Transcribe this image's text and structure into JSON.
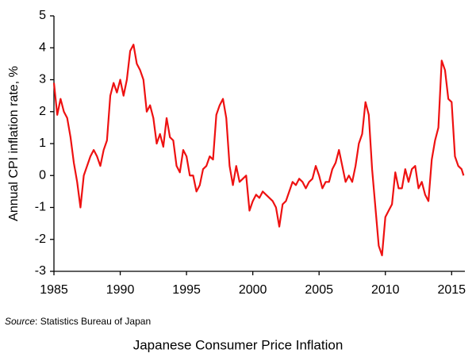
{
  "chart_data": {
    "type": "line",
    "title": "Japanese Consumer Price Inflation",
    "y_label": "Annual CPI inflation rate, %",
    "source_label": "Source",
    "source_text": ": Statistics Bureau of Japan",
    "x": [
      1985,
      1985.25,
      1985.5,
      1985.75,
      1986,
      1986.25,
      1986.5,
      1986.75,
      1987,
      1987.25,
      1987.5,
      1987.75,
      1988,
      1988.25,
      1988.5,
      1988.75,
      1989,
      1989.25,
      1989.5,
      1989.75,
      1990,
      1990.25,
      1990.5,
      1990.75,
      1991,
      1991.25,
      1991.5,
      1991.75,
      1992,
      1992.25,
      1992.5,
      1992.75,
      1993,
      1993.25,
      1993.5,
      1993.75,
      1994,
      1994.25,
      1994.5,
      1994.75,
      1995,
      1995.25,
      1995.5,
      1995.75,
      1996,
      1996.25,
      1996.5,
      1996.75,
      1997,
      1997.25,
      1997.5,
      1997.75,
      1998,
      1998.25,
      1998.5,
      1998.75,
      1999,
      1999.25,
      1999.5,
      1999.75,
      2000,
      2000.25,
      2000.5,
      2000.75,
      2001,
      2001.25,
      2001.5,
      2001.75,
      2002,
      2002.25,
      2002.5,
      2002.75,
      2003,
      2003.25,
      2003.5,
      2003.75,
      2004,
      2004.25,
      2004.5,
      2004.75,
      2005,
      2005.25,
      2005.5,
      2005.75,
      2006,
      2006.25,
      2006.5,
      2006.75,
      2007,
      2007.25,
      2007.5,
      2007.75,
      2008,
      2008.25,
      2008.5,
      2008.75,
      2009,
      2009.25,
      2009.5,
      2009.75,
      2010,
      2010.25,
      2010.5,
      2010.75,
      2011,
      2011.25,
      2011.5,
      2011.75,
      2012,
      2012.25,
      2012.5,
      2012.75,
      2013,
      2013.25,
      2013.5,
      2013.75,
      2014,
      2014.25,
      2014.5,
      2014.75,
      2015,
      2015.25,
      2015.5,
      2015.75,
      2015.9
    ],
    "series": [
      {
        "name": "CPI inflation",
        "color": "#ee1111",
        "values": [
          2.9,
          1.9,
          2.4,
          2.0,
          1.8,
          1.2,
          0.4,
          -0.2,
          -1.0,
          0.0,
          0.3,
          0.6,
          0.8,
          0.6,
          0.3,
          0.8,
          1.1,
          2.5,
          2.9,
          2.6,
          3.0,
          2.5,
          3.0,
          3.9,
          4.1,
          3.5,
          3.3,
          3.0,
          2.0,
          2.2,
          1.8,
          1.0,
          1.3,
          0.9,
          1.8,
          1.2,
          1.1,
          0.3,
          0.1,
          0.8,
          0.6,
          0.0,
          0.0,
          -0.5,
          -0.3,
          0.2,
          0.3,
          0.6,
          0.5,
          1.9,
          2.2,
          2.4,
          1.8,
          0.3,
          -0.3,
          0.3,
          -0.2,
          -0.1,
          0.0,
          -1.1,
          -0.8,
          -0.6,
          -0.7,
          -0.5,
          -0.6,
          -0.7,
          -0.8,
          -1.0,
          -1.6,
          -0.9,
          -0.8,
          -0.5,
          -0.2,
          -0.3,
          -0.1,
          -0.2,
          -0.4,
          -0.2,
          -0.1,
          0.3,
          0.0,
          -0.4,
          -0.2,
          -0.2,
          0.2,
          0.4,
          0.8,
          0.3,
          -0.2,
          0.0,
          -0.2,
          0.3,
          1.0,
          1.3,
          2.3,
          1.9,
          0.2,
          -1.0,
          -2.2,
          -2.5,
          -1.3,
          -1.1,
          -0.9,
          0.1,
          -0.4,
          -0.4,
          0.2,
          -0.2,
          0.2,
          0.3,
          -0.4,
          -0.2,
          -0.6,
          -0.8,
          0.5,
          1.1,
          1.5,
          3.6,
          3.3,
          2.4,
          2.3,
          0.6,
          0.3,
          0.2,
          0.0
        ]
      }
    ],
    "xlim": [
      1985,
      2016
    ],
    "ylim": [
      -3,
      5
    ],
    "xticks": [
      1985,
      1990,
      1995,
      2000,
      2005,
      2010,
      2015
    ],
    "yticks": [
      -3,
      -2,
      -1,
      0,
      1,
      2,
      3,
      4,
      5
    ],
    "grid": false
  }
}
